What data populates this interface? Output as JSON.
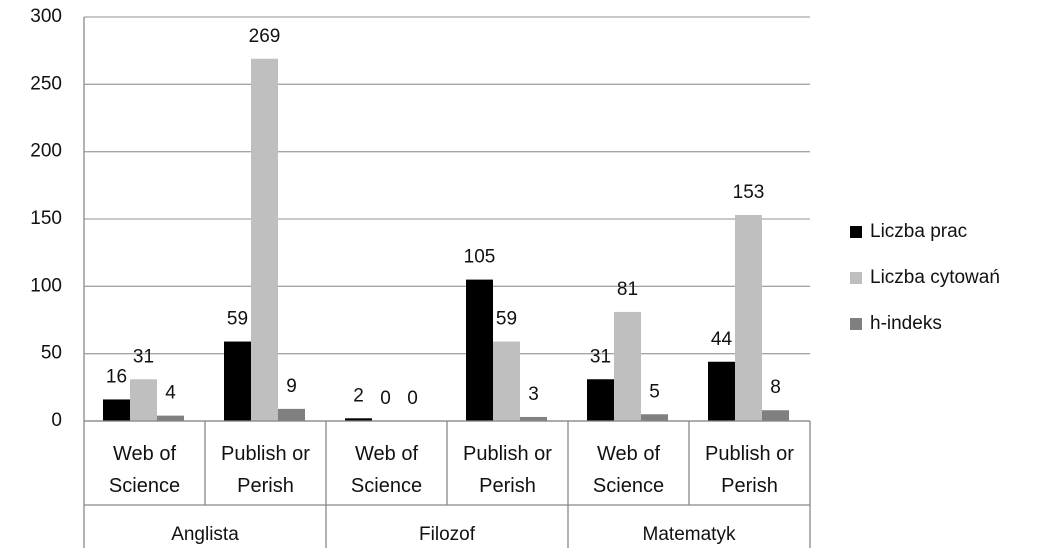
{
  "chart_data": {
    "type": "bar",
    "categories": [
      "Web of Science",
      "Publish or Perish",
      "Web of Science",
      "Publish or Perish",
      "Web of Science",
      "Publish or Perish"
    ],
    "groups": [
      "Anglista",
      "Filozof",
      "Matematyk"
    ],
    "series": [
      {
        "name": "Liczba prac",
        "color": "#000000",
        "values": [
          16,
          59,
          2,
          105,
          31,
          44
        ]
      },
      {
        "name": "Liczba cytowań",
        "color": "#bfbfbf",
        "values": [
          31,
          269,
          0,
          59,
          81,
          153
        ]
      },
      {
        "name": "h-indeks",
        "color": "#808080",
        "values": [
          4,
          9,
          0,
          3,
          5,
          8
        ]
      }
    ],
    "ylim": [
      0,
      300
    ],
    "yticks": [
      0,
      50,
      100,
      150,
      200,
      250,
      300
    ],
    "grid": true,
    "legend": "right"
  }
}
